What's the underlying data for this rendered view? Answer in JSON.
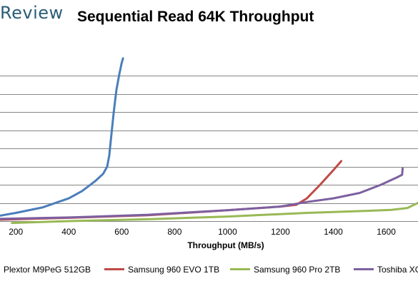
{
  "brand": "Review",
  "chart_data": {
    "type": "line",
    "title": "Sequential Read 64K Throughput",
    "xlabel": "Throughput (MB/s)",
    "ylabel": "",
    "xlim": [
      140,
      1720
    ],
    "ylim": [
      0,
      10
    ],
    "x_ticks": [
      200,
      400,
      600,
      800,
      1000,
      1200,
      1400,
      1600
    ],
    "y_gridlines": [
      1,
      2,
      3,
      4,
      5,
      6,
      7,
      8
    ],
    "grid": true,
    "legend_position": "bottom",
    "series": [
      {
        "name": "Plextor M9PeG 512GB",
        "color": "#4a7ebb",
        "points": [
          [
            140,
            0.3
          ],
          [
            200,
            0.45
          ],
          [
            300,
            0.75
          ],
          [
            400,
            1.25
          ],
          [
            450,
            1.65
          ],
          [
            500,
            2.2
          ],
          [
            530,
            2.6
          ],
          [
            545,
            3.0
          ],
          [
            553,
            3.6
          ],
          [
            560,
            4.6
          ],
          [
            570,
            6.0
          ],
          [
            580,
            7.2
          ],
          [
            590,
            8.0
          ],
          [
            600,
            8.7
          ],
          [
            605,
            8.95
          ]
        ]
      },
      {
        "name": "Samsung 960 EVO 1TB",
        "color": "#be4b48",
        "points": [
          [
            140,
            0.08
          ],
          [
            400,
            0.18
          ],
          [
            700,
            0.32
          ],
          [
            1000,
            0.6
          ],
          [
            1200,
            0.8
          ],
          [
            1260,
            0.9
          ],
          [
            1300,
            1.25
          ],
          [
            1350,
            2.0
          ],
          [
            1400,
            2.8
          ],
          [
            1430,
            3.3
          ]
        ]
      },
      {
        "name": "Samsung 960 Pro 2TB",
        "color": "#98b954",
        "points": [
          [
            185,
            -0.1
          ],
          [
            400,
            0.0
          ],
          [
            700,
            0.1
          ],
          [
            1000,
            0.25
          ],
          [
            1300,
            0.45
          ],
          [
            1500,
            0.55
          ],
          [
            1620,
            0.62
          ],
          [
            1680,
            0.72
          ],
          [
            1720,
            1.0
          ]
        ]
      },
      {
        "name": "Toshiba XG",
        "color": "#7d60a0",
        "points": [
          [
            140,
            0.12
          ],
          [
            400,
            0.2
          ],
          [
            700,
            0.35
          ],
          [
            1000,
            0.6
          ],
          [
            1200,
            0.8
          ],
          [
            1300,
            1.05
          ],
          [
            1400,
            1.25
          ],
          [
            1500,
            1.55
          ],
          [
            1580,
            2.0
          ],
          [
            1640,
            2.4
          ],
          [
            1660,
            2.55
          ],
          [
            1662,
            2.9
          ]
        ]
      }
    ]
  }
}
